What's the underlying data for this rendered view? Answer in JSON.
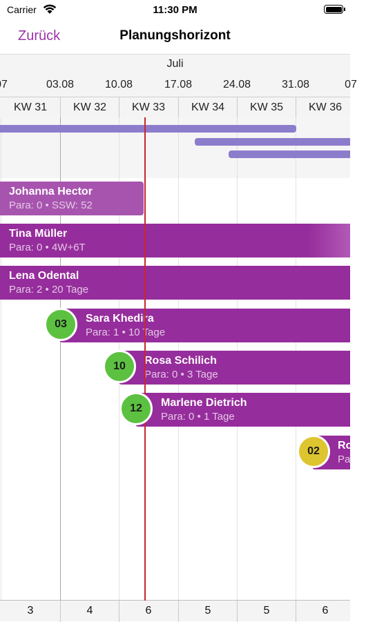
{
  "status": {
    "carrier": "Carrier",
    "time": "11:30 PM"
  },
  "nav": {
    "back_label": "Zurück",
    "title": "Planungshorizont"
  },
  "timeline": {
    "month": "Juli",
    "dates": [
      "07",
      "03.08",
      "10.08",
      "17.08",
      "24.08",
      "31.08",
      "07"
    ],
    "weeks": [
      "KW 31",
      "KW 32",
      "KW 33",
      "KW 34",
      "KW 35",
      "KW 36"
    ]
  },
  "patients": [
    {
      "name": "Johanna Hector",
      "info": "Para: 0 • SSW: 52",
      "badge": ""
    },
    {
      "name": "Tina Müller",
      "info": "Para: 0 • 4W+6T",
      "badge": ""
    },
    {
      "name": "Lena Odental",
      "info": "Para: 2 • 20 Tage",
      "badge": ""
    },
    {
      "name": "Sara Khedira",
      "info": "Para: 1 • 10 Tage",
      "badge": "03"
    },
    {
      "name": "Rosa Schilich",
      "info": "Para: 0 • 3 Tage",
      "badge": "10"
    },
    {
      "name": "Marlene Dietrich",
      "info": "Para: 0 • 1 Tage",
      "badge": "12"
    },
    {
      "name": "Ro",
      "info": "Pa",
      "badge": "02"
    }
  ],
  "footer": {
    "counts": [
      "3",
      "4",
      "6",
      "5",
      "5",
      "6"
    ]
  },
  "colors": {
    "accent": "#9a35a6",
    "bar": "#962d9c",
    "overview": "#8c7ccc",
    "today": "#c6262e",
    "badge_green": "#5cc140",
    "badge_yellow": "#ddc52f"
  }
}
